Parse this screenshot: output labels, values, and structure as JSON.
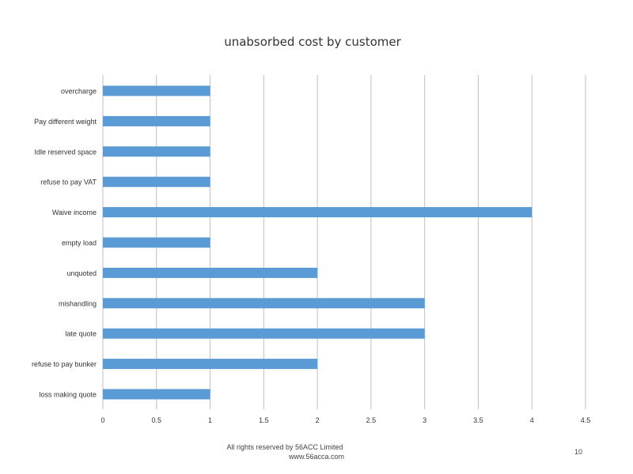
{
  "chart_data": {
    "type": "bar",
    "orientation": "horizontal",
    "title": "unabsorbed cost by customer",
    "xlabel": "",
    "ylabel": "",
    "categories": [
      "overcharge",
      "Pay different weight",
      "Idle reserved space",
      "refuse to pay VAT",
      "Waive income",
      "empty load",
      "unquoted",
      "mishandling",
      "late quote",
      "refuse to pay bunker",
      "loss making quote"
    ],
    "values": [
      1,
      1,
      1,
      1,
      4,
      1,
      2,
      3,
      3,
      2,
      1
    ],
    "xlim": [
      0,
      4.5
    ],
    "xticks": [
      "0",
      "0.5",
      "1",
      "1.5",
      "2",
      "2.5",
      "3",
      "3.5",
      "4",
      "4.5"
    ],
    "grid": "vertical",
    "legend": "none",
    "bar_color": "#5B9BD5",
    "grid_color": "#BFBFBF"
  },
  "footer": {
    "copyright": "All rights reserved by 56ACC Limited",
    "website": "www.56acca.com",
    "page_number": "10"
  }
}
